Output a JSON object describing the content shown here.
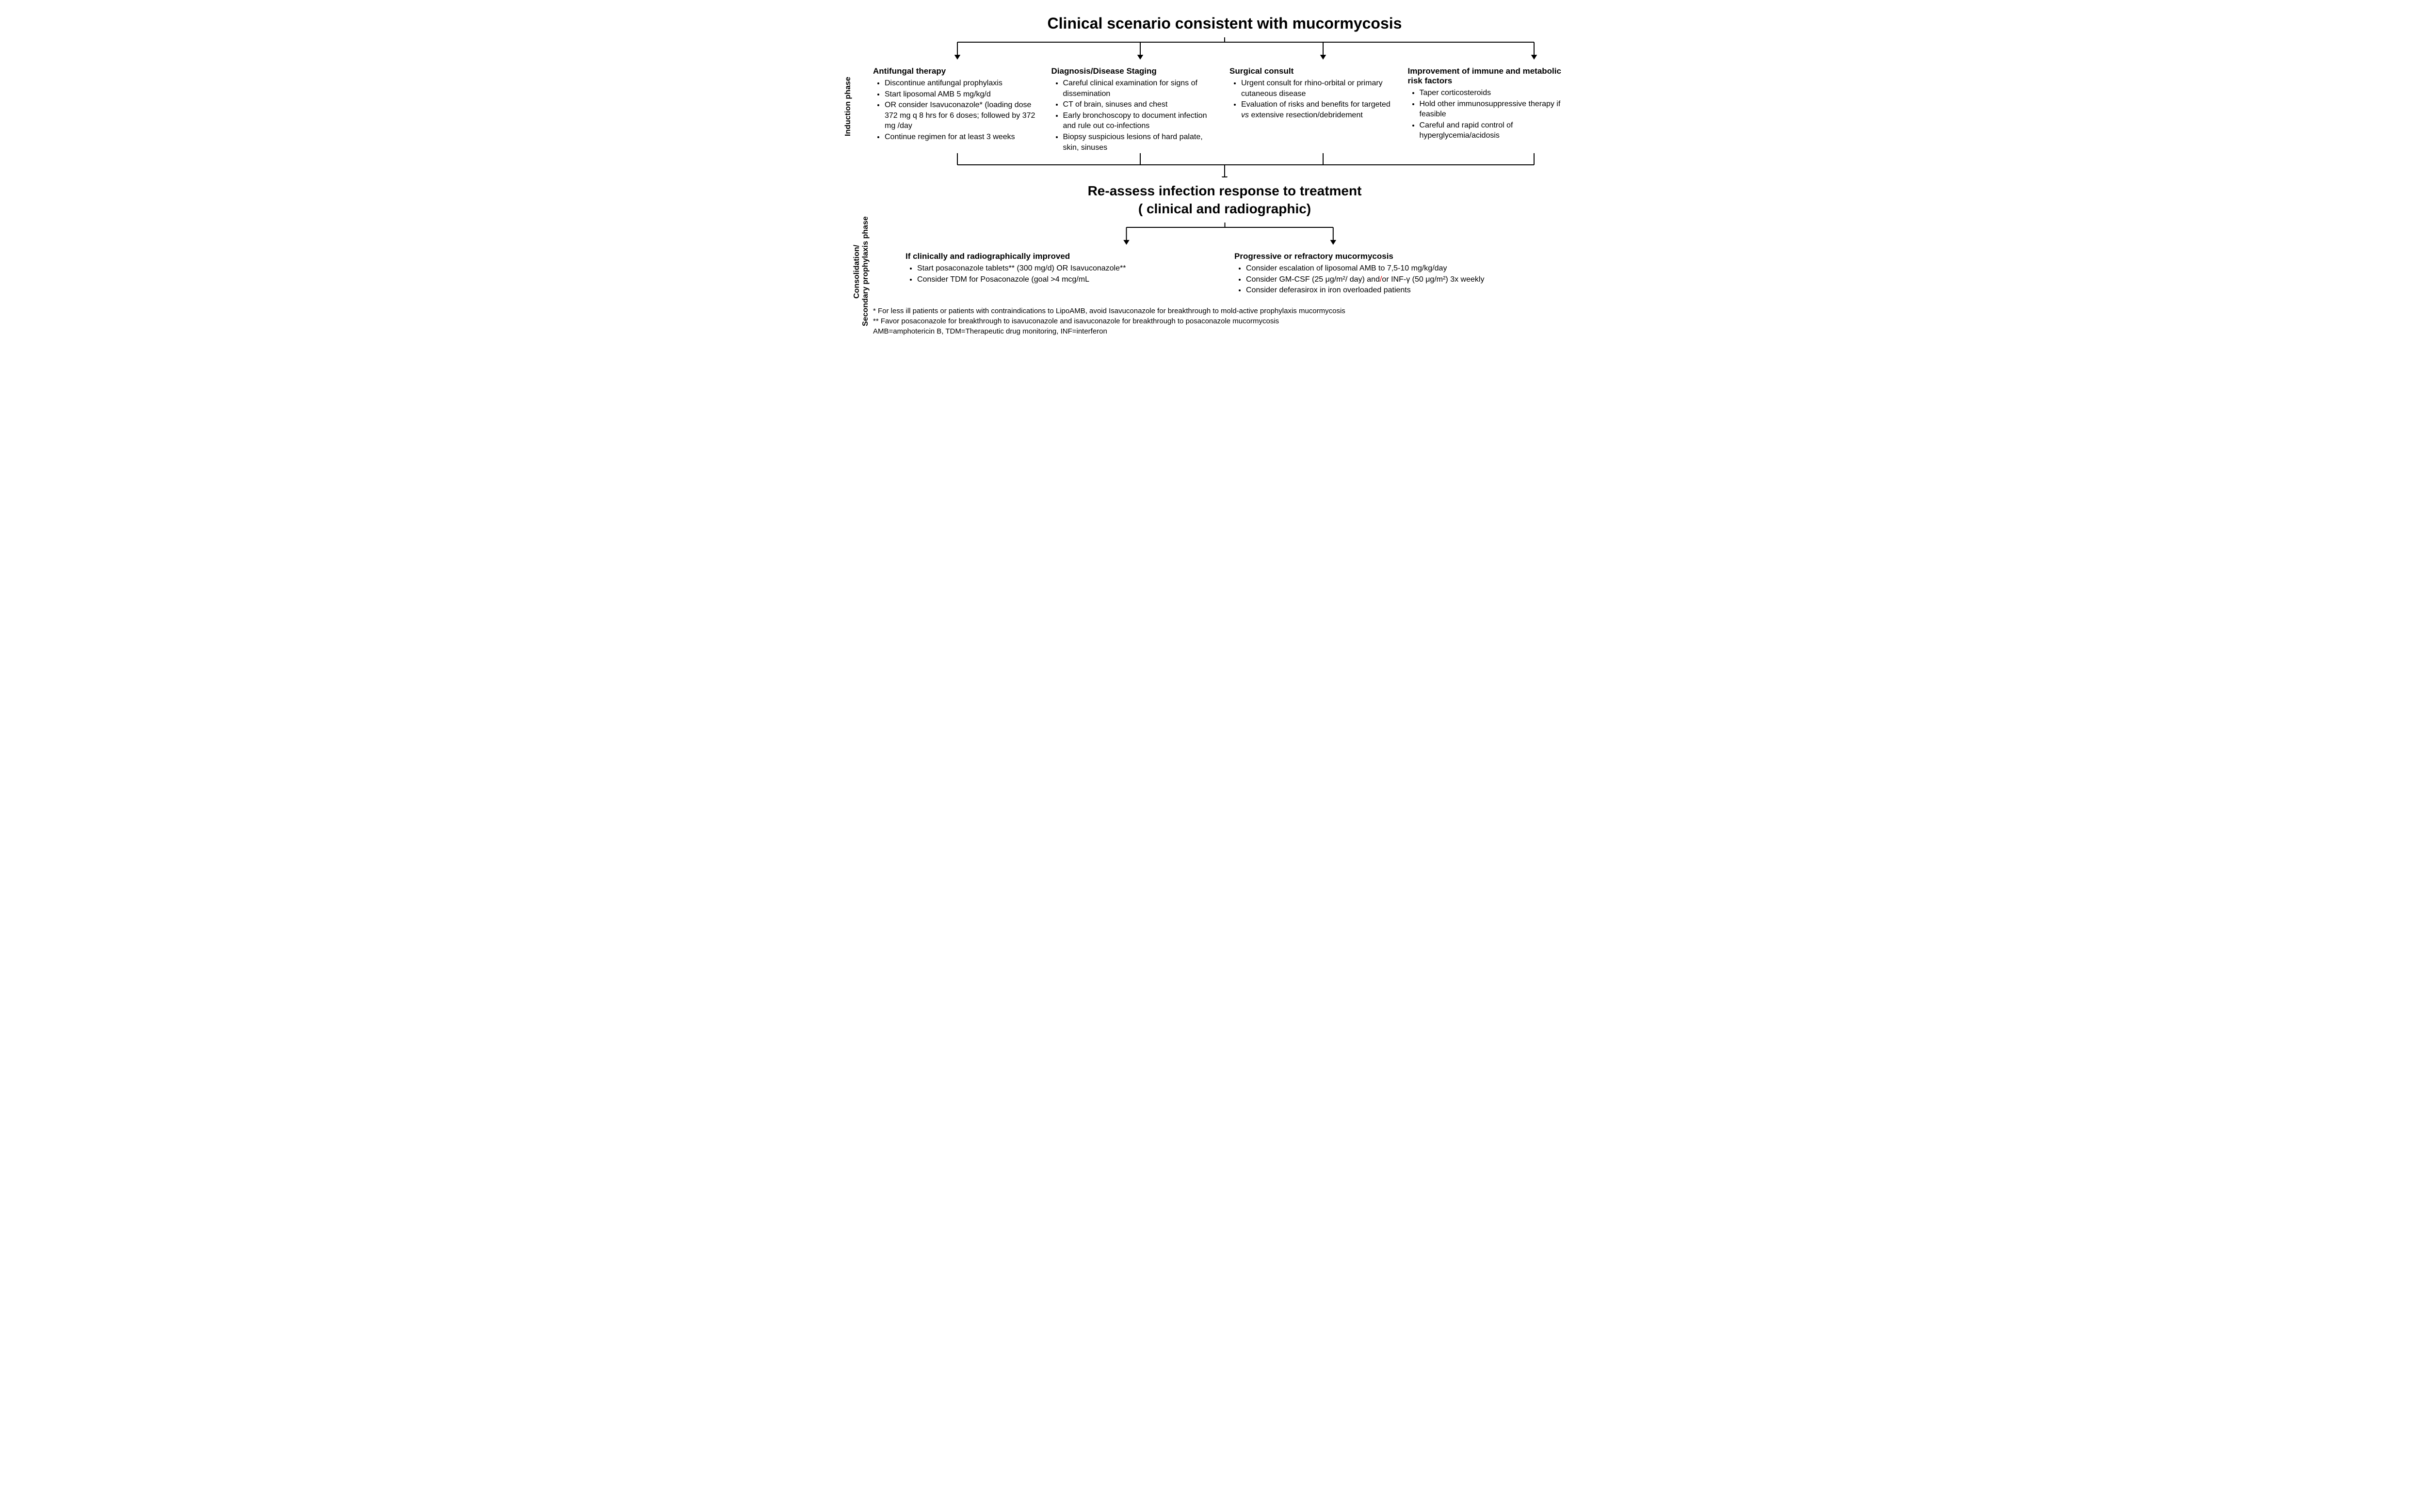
{
  "type": "flowchart",
  "background_color": "#ffffff",
  "text_color": "#000000",
  "line_color": "#000000",
  "title_fontsize": 32,
  "subtitle_fontsize": 28,
  "col_title_fontsize": 17,
  "body_fontsize": 16,
  "footnote_fontsize": 15,
  "accent_red": "#e00000",
  "line_width": 2,
  "arrow_size": 10,
  "phase1_label": "Induction phase",
  "phase2_label": "Consolidation/\nSecondary prophylaxis phase",
  "title": "Clinical scenario consistent with mucormycosis",
  "induction": {
    "cols": [
      {
        "title": "Antifungal therapy",
        "items": [
          "Discontinue antifungal prophylaxis",
          "Start liposomal AMB 5 mg/kg/d",
          "OR consider Isavuconazole* (loading dose 372 mg q 8 hrs for 6 doses; followed by 372 mg /day",
          "Continue regimen for at least 3 weeks"
        ]
      },
      {
        "title": "Diagnosis/Disease Staging",
        "items": [
          "Careful clinical examination for signs of dissemination",
          "CT of brain, sinuses and chest",
          "Early bronchoscopy to document infection and rule out co-infections",
          "Biopsy suspicious lesions of hard palate, skin, sinuses"
        ]
      },
      {
        "title": "Surgical consult",
        "items": [
          "Urgent  consult for rhino-orbital or primary cutaneous disease",
          "Evaluation of risks and benefits for targeted <span class=\"italic\">vs</span> extensive resection/debridement"
        ]
      },
      {
        "title": "Improvement of immune and metabolic risk factors",
        "items": [
          "Taper corticosteroids",
          "Hold other immunosuppressive therapy if feasible",
          "Careful and rapid control of hyperglycemia/acidosis"
        ]
      }
    ]
  },
  "reassess_title": "Re-assess infection response to treatment\n( clinical and radiographic)",
  "consolidation": {
    "cols": [
      {
        "title": "If clinically and radiographically improved",
        "items": [
          "Start posaconazole tablets** (300 mg/d) OR Isavuconazole**",
          "Consider TDM for Posaconazole (goal >4 mcg/mL"
        ]
      },
      {
        "title": "Progressive or refractory mucormycosis",
        "items": [
          "Consider escalation of liposomal AMB to 7,5-10 mg/kg/day",
          "Consider GM-CSF (25 μg/m²/ day) and<span class=\"red\">/</span>or INF-γ (50 μg/m²) 3x weekly",
          "Consider deferasirox in iron overloaded patients"
        ]
      }
    ]
  },
  "footnotes": [
    "* For less ill patients or patients with contraindications to LipoAMB, avoid Isavuconazole for breakthrough to mold-active prophylaxis mucormycosis",
    "** Favor posaconazole for breakthrough to isavuconazole and isavuconazole for breakthrough to posaconazole mucormycosis",
    "AMB=amphotericin B, TDM=Therapeutic drug monitoring, INF=interferon"
  ],
  "connectors": {
    "fanout4": {
      "trunk": 10,
      "branch_drop": 26,
      "positions_pct": [
        12,
        38,
        64,
        94
      ]
    },
    "fanin4": {
      "rise": 24,
      "trunk": 24,
      "positions_pct": [
        12,
        38,
        64,
        94
      ]
    },
    "fanout2": {
      "trunk": 10,
      "branch_drop": 26,
      "positions_pct": [
        30,
        72
      ]
    }
  }
}
